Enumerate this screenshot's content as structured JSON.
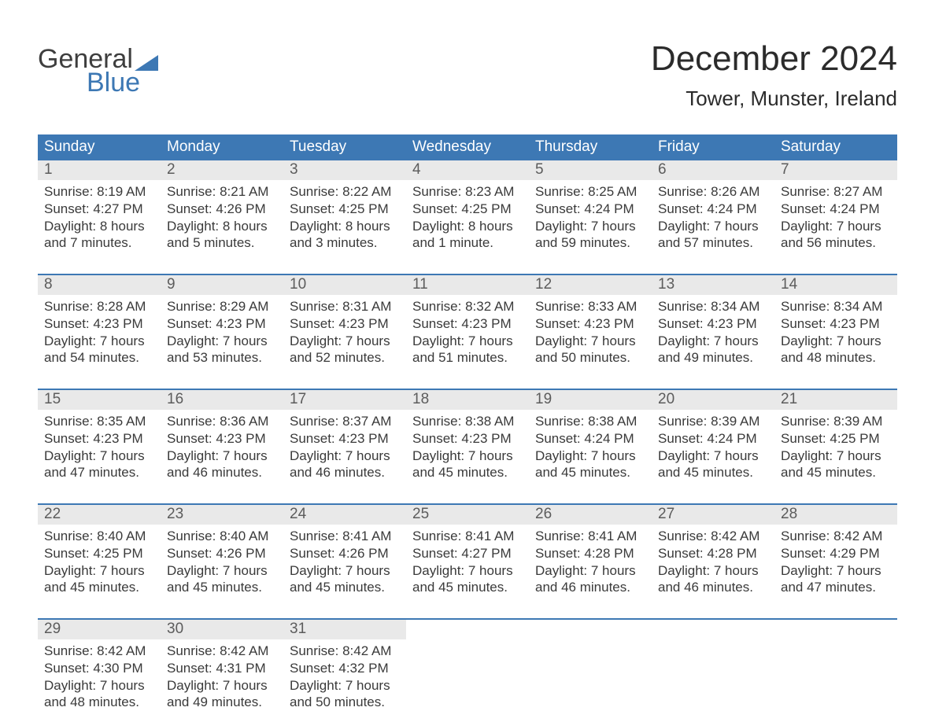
{
  "brand": {
    "word1": "General",
    "word2": "Blue",
    "accent_color": "#3d78b4",
    "word2_color": "#3d78b4"
  },
  "title": "December 2024",
  "location": "Tower, Munster, Ireland",
  "colors": {
    "header_bg": "#3d78b4",
    "header_text": "#ffffff",
    "daynum_bg": "#e9e9e9",
    "daynum_text": "#5c5c5c",
    "body_text": "#3a3a3a",
    "page_bg": "#ffffff"
  },
  "day_labels": [
    "Sunday",
    "Monday",
    "Tuesday",
    "Wednesday",
    "Thursday",
    "Friday",
    "Saturday"
  ],
  "weeks": [
    [
      {
        "n": "1",
        "sr": "8:19 AM",
        "ss": "4:27 PM",
        "d1": "Daylight: 8 hours",
        "d2": "and 7 minutes."
      },
      {
        "n": "2",
        "sr": "8:21 AM",
        "ss": "4:26 PM",
        "d1": "Daylight: 8 hours",
        "d2": "and 5 minutes."
      },
      {
        "n": "3",
        "sr": "8:22 AM",
        "ss": "4:25 PM",
        "d1": "Daylight: 8 hours",
        "d2": "and 3 minutes."
      },
      {
        "n": "4",
        "sr": "8:23 AM",
        "ss": "4:25 PM",
        "d1": "Daylight: 8 hours",
        "d2": "and 1 minute."
      },
      {
        "n": "5",
        "sr": "8:25 AM",
        "ss": "4:24 PM",
        "d1": "Daylight: 7 hours",
        "d2": "and 59 minutes."
      },
      {
        "n": "6",
        "sr": "8:26 AM",
        "ss": "4:24 PM",
        "d1": "Daylight: 7 hours",
        "d2": "and 57 minutes."
      },
      {
        "n": "7",
        "sr": "8:27 AM",
        "ss": "4:24 PM",
        "d1": "Daylight: 7 hours",
        "d2": "and 56 minutes."
      }
    ],
    [
      {
        "n": "8",
        "sr": "8:28 AM",
        "ss": "4:23 PM",
        "d1": "Daylight: 7 hours",
        "d2": "and 54 minutes."
      },
      {
        "n": "9",
        "sr": "8:29 AM",
        "ss": "4:23 PM",
        "d1": "Daylight: 7 hours",
        "d2": "and 53 minutes."
      },
      {
        "n": "10",
        "sr": "8:31 AM",
        "ss": "4:23 PM",
        "d1": "Daylight: 7 hours",
        "d2": "and 52 minutes."
      },
      {
        "n": "11",
        "sr": "8:32 AM",
        "ss": "4:23 PM",
        "d1": "Daylight: 7 hours",
        "d2": "and 51 minutes."
      },
      {
        "n": "12",
        "sr": "8:33 AM",
        "ss": "4:23 PM",
        "d1": "Daylight: 7 hours",
        "d2": "and 50 minutes."
      },
      {
        "n": "13",
        "sr": "8:34 AM",
        "ss": "4:23 PM",
        "d1": "Daylight: 7 hours",
        "d2": "and 49 minutes."
      },
      {
        "n": "14",
        "sr": "8:34 AM",
        "ss": "4:23 PM",
        "d1": "Daylight: 7 hours",
        "d2": "and 48 minutes."
      }
    ],
    [
      {
        "n": "15",
        "sr": "8:35 AM",
        "ss": "4:23 PM",
        "d1": "Daylight: 7 hours",
        "d2": "and 47 minutes."
      },
      {
        "n": "16",
        "sr": "8:36 AM",
        "ss": "4:23 PM",
        "d1": "Daylight: 7 hours",
        "d2": "and 46 minutes."
      },
      {
        "n": "17",
        "sr": "8:37 AM",
        "ss": "4:23 PM",
        "d1": "Daylight: 7 hours",
        "d2": "and 46 minutes."
      },
      {
        "n": "18",
        "sr": "8:38 AM",
        "ss": "4:23 PM",
        "d1": "Daylight: 7 hours",
        "d2": "and 45 minutes."
      },
      {
        "n": "19",
        "sr": "8:38 AM",
        "ss": "4:24 PM",
        "d1": "Daylight: 7 hours",
        "d2": "and 45 minutes."
      },
      {
        "n": "20",
        "sr": "8:39 AM",
        "ss": "4:24 PM",
        "d1": "Daylight: 7 hours",
        "d2": "and 45 minutes."
      },
      {
        "n": "21",
        "sr": "8:39 AM",
        "ss": "4:25 PM",
        "d1": "Daylight: 7 hours",
        "d2": "and 45 minutes."
      }
    ],
    [
      {
        "n": "22",
        "sr": "8:40 AM",
        "ss": "4:25 PM",
        "d1": "Daylight: 7 hours",
        "d2": "and 45 minutes."
      },
      {
        "n": "23",
        "sr": "8:40 AM",
        "ss": "4:26 PM",
        "d1": "Daylight: 7 hours",
        "d2": "and 45 minutes."
      },
      {
        "n": "24",
        "sr": "8:41 AM",
        "ss": "4:26 PM",
        "d1": "Daylight: 7 hours",
        "d2": "and 45 minutes."
      },
      {
        "n": "25",
        "sr": "8:41 AM",
        "ss": "4:27 PM",
        "d1": "Daylight: 7 hours",
        "d2": "and 45 minutes."
      },
      {
        "n": "26",
        "sr": "8:41 AM",
        "ss": "4:28 PM",
        "d1": "Daylight: 7 hours",
        "d2": "and 46 minutes."
      },
      {
        "n": "27",
        "sr": "8:42 AM",
        "ss": "4:28 PM",
        "d1": "Daylight: 7 hours",
        "d2": "and 46 minutes."
      },
      {
        "n": "28",
        "sr": "8:42 AM",
        "ss": "4:29 PM",
        "d1": "Daylight: 7 hours",
        "d2": "and 47 minutes."
      }
    ],
    [
      {
        "n": "29",
        "sr": "8:42 AM",
        "ss": "4:30 PM",
        "d1": "Daylight: 7 hours",
        "d2": "and 48 minutes."
      },
      {
        "n": "30",
        "sr": "8:42 AM",
        "ss": "4:31 PM",
        "d1": "Daylight: 7 hours",
        "d2": "and 49 minutes."
      },
      {
        "n": "31",
        "sr": "8:42 AM",
        "ss": "4:32 PM",
        "d1": "Daylight: 7 hours",
        "d2": "and 50 minutes."
      },
      null,
      null,
      null,
      null
    ]
  ],
  "labels": {
    "sunrise": "Sunrise: ",
    "sunset": "Sunset: "
  }
}
